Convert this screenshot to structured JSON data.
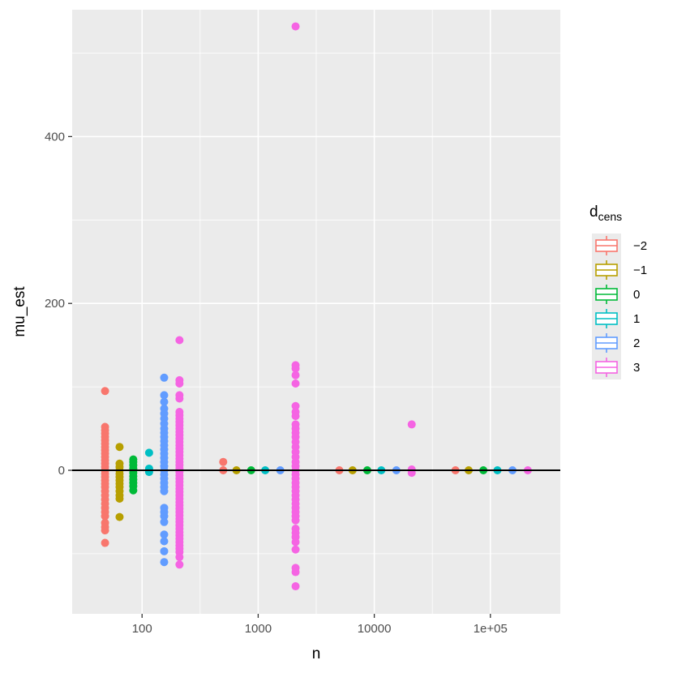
{
  "chart_data": {
    "type": "scatter",
    "xlabel": "n",
    "ylabel": "mu_est",
    "x_scale": "log10",
    "xlim": [
      25,
      400000
    ],
    "ylim": [
      -172,
      552
    ],
    "x_ticks": [
      {
        "value": 100,
        "label": "100"
      },
      {
        "value": 1000,
        "label": "1000"
      },
      {
        "value": 10000,
        "label": "10000"
      },
      {
        "value": 100000,
        "label": "1e+05"
      }
    ],
    "y_ticks": [
      {
        "value": 0,
        "label": "0"
      },
      {
        "value": 200,
        "label": "200"
      },
      {
        "value": 400,
        "label": "400"
      }
    ],
    "y_minor_ticks": [
      -100,
      100,
      300,
      500
    ],
    "x_minor_ticks": [
      316.23,
      3162.28,
      31622.78
    ],
    "hline": 0,
    "grid": true,
    "legend": {
      "title_main": "d",
      "title_sub": "cens",
      "position": "right",
      "entries": [
        "−2",
        "−1",
        "0",
        "1",
        "2",
        "3"
      ]
    },
    "colors": [
      "#F8766D",
      "#B79F00",
      "#00BA38",
      "#00BFC4",
      "#619CFF",
      "#F564E3"
    ],
    "series": [
      {
        "label": "−2",
        "points": [
          [
            48,
            95
          ],
          [
            48,
            52
          ],
          [
            48,
            48
          ],
          [
            48,
            44
          ],
          [
            48,
            40
          ],
          [
            48,
            36
          ],
          [
            48,
            32
          ],
          [
            48,
            28
          ],
          [
            48,
            24
          ],
          [
            48,
            20
          ],
          [
            48,
            16
          ],
          [
            48,
            12
          ],
          [
            48,
            8
          ],
          [
            48,
            4
          ],
          [
            48,
            0
          ],
          [
            48,
            -4
          ],
          [
            48,
            -8
          ],
          [
            48,
            -12
          ],
          [
            48,
            -16
          ],
          [
            48,
            -20
          ],
          [
            48,
            -25
          ],
          [
            48,
            -30
          ],
          [
            48,
            -35
          ],
          [
            48,
            -40
          ],
          [
            48,
            -45
          ],
          [
            48,
            -50
          ],
          [
            48,
            -55
          ],
          [
            48,
            -63
          ],
          [
            48,
            -68
          ],
          [
            48,
            -72
          ],
          [
            48,
            -87
          ],
          [
            500,
            10
          ],
          [
            500,
            0
          ],
          [
            5000,
            0
          ],
          [
            50000,
            0
          ]
        ]
      },
      {
        "label": "−1",
        "points": [
          [
            64,
            28
          ],
          [
            64,
            8
          ],
          [
            64,
            4
          ],
          [
            64,
            0
          ],
          [
            64,
            -4
          ],
          [
            64,
            -8
          ],
          [
            64,
            -12
          ],
          [
            64,
            -16
          ],
          [
            64,
            -20
          ],
          [
            64,
            -25
          ],
          [
            64,
            -30
          ],
          [
            64,
            -34
          ],
          [
            64,
            -56
          ],
          [
            650,
            0
          ],
          [
            6500,
            0
          ],
          [
            65000,
            0
          ]
        ]
      },
      {
        "label": "0",
        "points": [
          [
            84,
            13
          ],
          [
            84,
            10
          ],
          [
            84,
            6
          ],
          [
            84,
            2
          ],
          [
            84,
            0
          ],
          [
            84,
            -3
          ],
          [
            84,
            -7
          ],
          [
            84,
            -11
          ],
          [
            84,
            -15
          ],
          [
            84,
            -19
          ],
          [
            84,
            -24
          ],
          [
            870,
            0
          ],
          [
            8700,
            0
          ],
          [
            87000,
            0
          ]
        ]
      },
      {
        "label": "1",
        "points": [
          [
            115,
            21
          ],
          [
            115,
            2
          ],
          [
            115,
            0
          ],
          [
            115,
            -2
          ],
          [
            1150,
            0
          ],
          [
            11500,
            0
          ],
          [
            115000,
            0
          ]
        ]
      },
      {
        "label": "2",
        "points": [
          [
            155,
            111
          ],
          [
            155,
            90
          ],
          [
            155,
            82
          ],
          [
            155,
            74
          ],
          [
            155,
            68
          ],
          [
            155,
            62
          ],
          [
            155,
            56
          ],
          [
            155,
            50
          ],
          [
            155,
            45
          ],
          [
            155,
            40
          ],
          [
            155,
            35
          ],
          [
            155,
            30
          ],
          [
            155,
            25
          ],
          [
            155,
            20
          ],
          [
            155,
            15
          ],
          [
            155,
            10
          ],
          [
            155,
            5
          ],
          [
            155,
            0
          ],
          [
            155,
            -5
          ],
          [
            155,
            -10
          ],
          [
            155,
            -15
          ],
          [
            155,
            -20
          ],
          [
            155,
            -25
          ],
          [
            155,
            -45
          ],
          [
            155,
            -50
          ],
          [
            155,
            -55
          ],
          [
            155,
            -62
          ],
          [
            155,
            -77
          ],
          [
            155,
            -85
          ],
          [
            155,
            -97
          ],
          [
            155,
            -110
          ],
          [
            1550,
            0
          ],
          [
            15500,
            0
          ],
          [
            155000,
            0
          ]
        ]
      },
      {
        "label": "3",
        "points": [
          [
            210,
            156
          ],
          [
            210,
            108
          ],
          [
            210,
            104
          ],
          [
            210,
            90
          ],
          [
            210,
            86
          ],
          [
            210,
            70
          ],
          [
            210,
            66
          ],
          [
            210,
            62
          ],
          [
            210,
            58
          ],
          [
            210,
            54
          ],
          [
            210,
            50
          ],
          [
            210,
            46
          ],
          [
            210,
            42
          ],
          [
            210,
            38
          ],
          [
            210,
            34
          ],
          [
            210,
            30
          ],
          [
            210,
            26
          ],
          [
            210,
            22
          ],
          [
            210,
            18
          ],
          [
            210,
            14
          ],
          [
            210,
            10
          ],
          [
            210,
            6
          ],
          [
            210,
            2
          ],
          [
            210,
            0
          ],
          [
            210,
            -2
          ],
          [
            210,
            -6
          ],
          [
            210,
            -10
          ],
          [
            210,
            -14
          ],
          [
            210,
            -18
          ],
          [
            210,
            -22
          ],
          [
            210,
            -26
          ],
          [
            210,
            -30
          ],
          [
            210,
            -34
          ],
          [
            210,
            -38
          ],
          [
            210,
            -42
          ],
          [
            210,
            -46
          ],
          [
            210,
            -50
          ],
          [
            210,
            -54
          ],
          [
            210,
            -58
          ],
          [
            210,
            -62
          ],
          [
            210,
            -66
          ],
          [
            210,
            -70
          ],
          [
            210,
            -74
          ],
          [
            210,
            -78
          ],
          [
            210,
            -82
          ],
          [
            210,
            -86
          ],
          [
            210,
            -90
          ],
          [
            210,
            -94
          ],
          [
            210,
            -98
          ],
          [
            210,
            -104
          ],
          [
            210,
            -113
          ],
          [
            2100,
            532
          ],
          [
            2100,
            126
          ],
          [
            2100,
            122
          ],
          [
            2100,
            114
          ],
          [
            2100,
            104
          ],
          [
            2100,
            77
          ],
          [
            2100,
            70
          ],
          [
            2100,
            65
          ],
          [
            2100,
            55
          ],
          [
            2100,
            50
          ],
          [
            2100,
            45
          ],
          [
            2100,
            40
          ],
          [
            2100,
            34
          ],
          [
            2100,
            28
          ],
          [
            2100,
            22
          ],
          [
            2100,
            16
          ],
          [
            2100,
            10
          ],
          [
            2100,
            5
          ],
          [
            2100,
            0
          ],
          [
            2100,
            -5
          ],
          [
            2100,
            -10
          ],
          [
            2100,
            -15
          ],
          [
            2100,
            -20
          ],
          [
            2100,
            -25
          ],
          [
            2100,
            -30
          ],
          [
            2100,
            -35
          ],
          [
            2100,
            -40
          ],
          [
            2100,
            -45
          ],
          [
            2100,
            -50
          ],
          [
            2100,
            -55
          ],
          [
            2100,
            -60
          ],
          [
            2100,
            -70
          ],
          [
            2100,
            -75
          ],
          [
            2100,
            -80
          ],
          [
            2100,
            -86
          ],
          [
            2100,
            -95
          ],
          [
            2100,
            -117
          ],
          [
            2100,
            -122
          ],
          [
            2100,
            -139
          ],
          [
            21000,
            55
          ],
          [
            21000,
            1
          ],
          [
            21000,
            -3
          ],
          [
            210000,
            0
          ]
        ]
      }
    ]
  }
}
